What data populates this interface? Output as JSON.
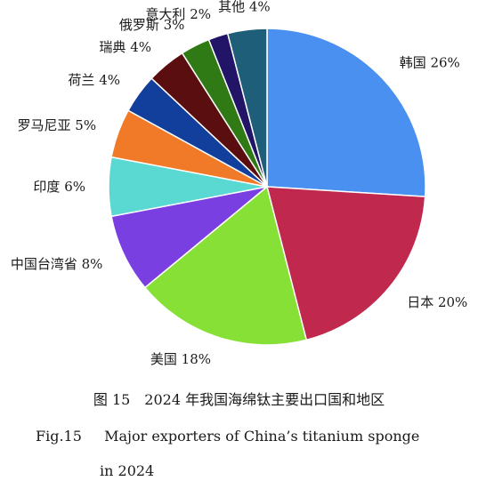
{
  "chart_data": {
    "type": "pie",
    "title": "",
    "slices": [
      {
        "label": "韩国 26%",
        "value": 26,
        "color": "#4a90f0"
      },
      {
        "label": "日本 20%",
        "value": 20,
        "color": "#c0284e"
      },
      {
        "label": "美国 18%",
        "value": 18,
        "color": "#86e036"
      },
      {
        "label": "中国台湾省 8%",
        "value": 8,
        "color": "#7a3fe0"
      },
      {
        "label": "印度 6%",
        "value": 6,
        "color": "#5ad8d2"
      },
      {
        "label": "罗马尼亚 5%",
        "value": 5,
        "color": "#f07a28"
      },
      {
        "label": "荷兰 4%",
        "value": 4,
        "color": "#123e9c"
      },
      {
        "label": "瑞典 4%",
        "value": 4,
        "color": "#5a0e10"
      },
      {
        "label": "俄罗斯 3%",
        "value": 3,
        "color": "#2f7a14"
      },
      {
        "label": "意大利 2%",
        "value": 2,
        "color": "#221466"
      },
      {
        "label": "其他 4%",
        "value": 4,
        "color": "#1f5e78"
      }
    ]
  },
  "caption": {
    "cn": "图 15　2024 年我国海绵钛主要出口国和地区",
    "en_fig": "Fig.15",
    "en_line1": "Major exporters of China’s titanium sponge",
    "en_line2": "in 2024"
  }
}
